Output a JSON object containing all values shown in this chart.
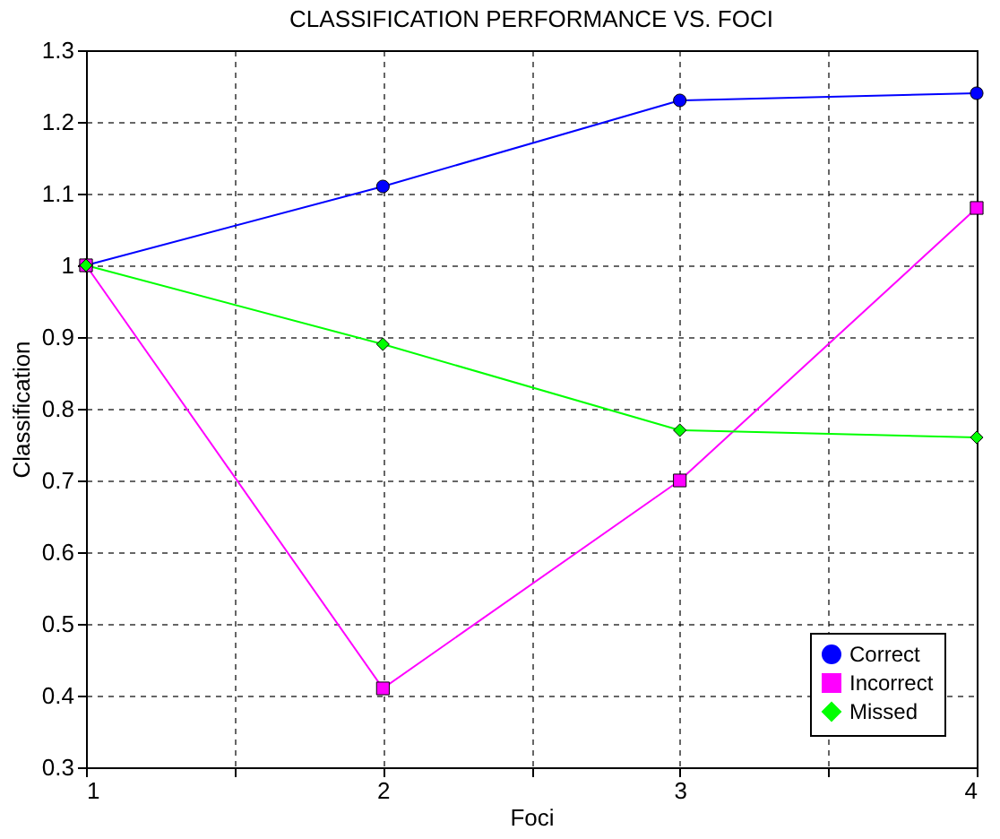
{
  "chart_data": {
    "type": "line",
    "title": "CLASSIFICATION PERFORMANCE VS. FOCI",
    "xlabel": "Foci",
    "ylabel": "Classification",
    "x": [
      1,
      2,
      3,
      4
    ],
    "series": [
      {
        "name": "Correct",
        "color": "#0000ff",
        "marker": "circle",
        "values": [
          1.0,
          1.11,
          1.23,
          1.24
        ]
      },
      {
        "name": "Incorrect",
        "color": "#ff00ff",
        "marker": "square",
        "values": [
          1.0,
          0.41,
          0.7,
          1.08
        ]
      },
      {
        "name": "Missed",
        "color": "#00ff00",
        "marker": "diamond",
        "values": [
          1.0,
          0.89,
          0.77,
          0.76
        ]
      }
    ],
    "xlim": [
      1,
      4
    ],
    "xticks": [
      1,
      {
        "value": 1.5,
        "label": null
      },
      2,
      {
        "value": 2.5,
        "label": null
      },
      3,
      {
        "value": 3.5,
        "label": null
      },
      4
    ],
    "ylim": [
      0.3,
      1.3
    ],
    "yticks": [
      0.3,
      0.4,
      0.5,
      0.6,
      0.7,
      0.8,
      0.9,
      1,
      1.1,
      1.2,
      1.3
    ],
    "grid": true,
    "legend": "bottom right",
    "line_style": "solid"
  }
}
